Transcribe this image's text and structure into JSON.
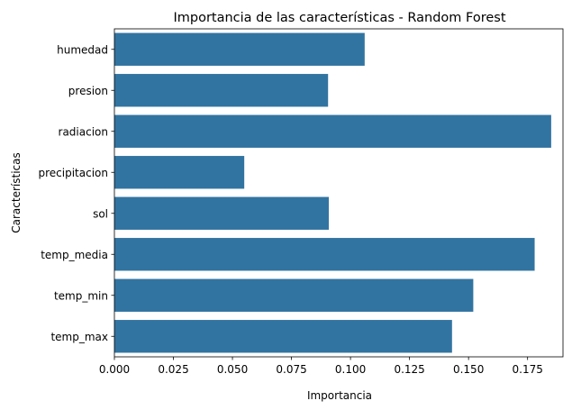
{
  "chart_data": {
    "type": "bar",
    "orientation": "horizontal",
    "title": "Importancia de las características - Random Forest",
    "xlabel": "Importancia",
    "ylabel": "Características",
    "categories": [
      "humedad",
      "presion",
      "radiacion",
      "precipitacion",
      "sol",
      "temp_media",
      "temp_min",
      "temp_max"
    ],
    "values": [
      0.106,
      0.0905,
      0.185,
      0.055,
      0.0908,
      0.178,
      0.152,
      0.143
    ],
    "xlim": [
      0,
      0.19
    ],
    "xticks": [
      0.0,
      0.025,
      0.05,
      0.075,
      0.1,
      0.125,
      0.15,
      0.175
    ],
    "xtick_labels": [
      "0.000",
      "0.025",
      "0.050",
      "0.075",
      "0.100",
      "0.125",
      "0.150",
      "0.175"
    ],
    "bar_color": "#3274a1",
    "grid": false
  }
}
